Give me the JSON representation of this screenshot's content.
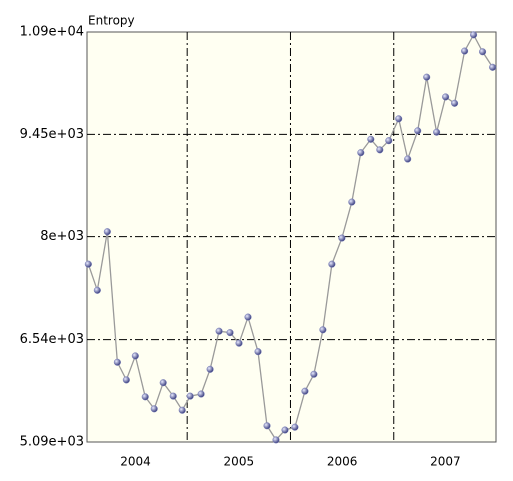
{
  "chart_data": {
    "type": "line",
    "title": "Entropy",
    "x": [
      2004.043,
      2004.13,
      2004.227,
      2004.324,
      2004.411,
      2004.498,
      2004.594,
      2004.681,
      2004.768,
      2004.865,
      2004.952,
      2005.029,
      2005.135,
      2005.222,
      2005.309,
      2005.415,
      2005.502,
      2005.589,
      2005.686,
      2005.773,
      2005.86,
      2005.947,
      2006.043,
      2006.14,
      2006.227,
      2006.314,
      2006.401,
      2006.498,
      2006.594,
      2006.681,
      2006.778,
      2006.865,
      2006.952,
      2007.048,
      2007.135,
      2007.232,
      2007.319,
      2007.415,
      2007.502,
      2007.589,
      2007.686,
      2007.773,
      2007.86,
      2007.957
    ],
    "values": [
      7610,
      7240,
      8070,
      6220,
      5970,
      6310,
      5730,
      5560,
      5930,
      5740,
      5540,
      5740,
      5770,
      6120,
      6660,
      6640,
      6490,
      6860,
      6370,
      5320,
      5120,
      5260,
      5300,
      5810,
      6050,
      6680,
      7610,
      7980,
      8490,
      9190,
      9380,
      9230,
      9360,
      9670,
      9100,
      9500,
      10260,
      9480,
      9980,
      9890,
      10630,
      10860,
      10620,
      10400
    ],
    "color": "#7a80b8",
    "line_color": "#9a9a9a",
    "xlim": [
      2004.03,
      2007.99
    ],
    "xticks": [
      {
        "value": 2004.5,
        "label": "2004"
      },
      {
        "value": 2005.5,
        "label": "2005"
      },
      {
        "value": 2006.5,
        "label": "2006"
      },
      {
        "value": 2007.5,
        "label": "2007"
      }
    ],
    "xgrid": [
      2005,
      2006,
      2007
    ],
    "ylim": [
      5090,
      10900
    ],
    "yticks": [
      {
        "value": 5090,
        "label": "5.09e+03"
      },
      {
        "value": 6540,
        "label": "6.54e+03"
      },
      {
        "value": 8000,
        "label": "8e+03"
      },
      {
        "value": 9450,
        "label": "9.45e+03"
      },
      {
        "value": 10900,
        "label": "1.09e+04"
      }
    ],
    "grid": true
  }
}
